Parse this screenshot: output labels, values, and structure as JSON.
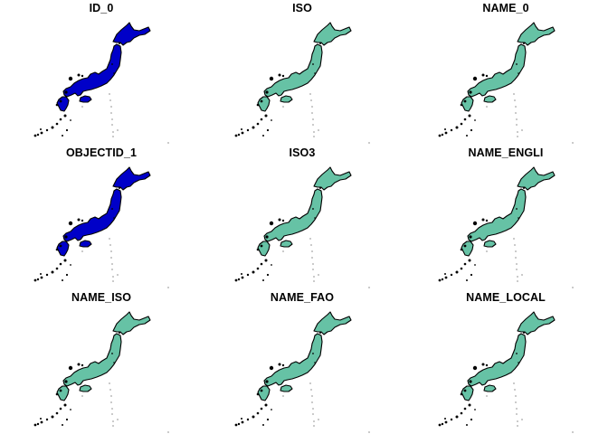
{
  "panels": [
    {
      "title": "ID_0",
      "fill": "#0000c8"
    },
    {
      "title": "ISO",
      "fill": "#66c2a5"
    },
    {
      "title": "NAME_0",
      "fill": "#66c2a5"
    },
    {
      "title": "OBJECTID_1",
      "fill": "#0000c8"
    },
    {
      "title": "ISO3",
      "fill": "#66c2a5"
    },
    {
      "title": "NAME_ENGLI",
      "fill": "#66c2a5"
    },
    {
      "title": "NAME_ISO",
      "fill": "#66c2a5"
    },
    {
      "title": "NAME_FAO",
      "fill": "#66c2a5"
    },
    {
      "title": "NAME_LOCAL",
      "fill": "#66c2a5"
    }
  ],
  "outline_color": "#000000"
}
